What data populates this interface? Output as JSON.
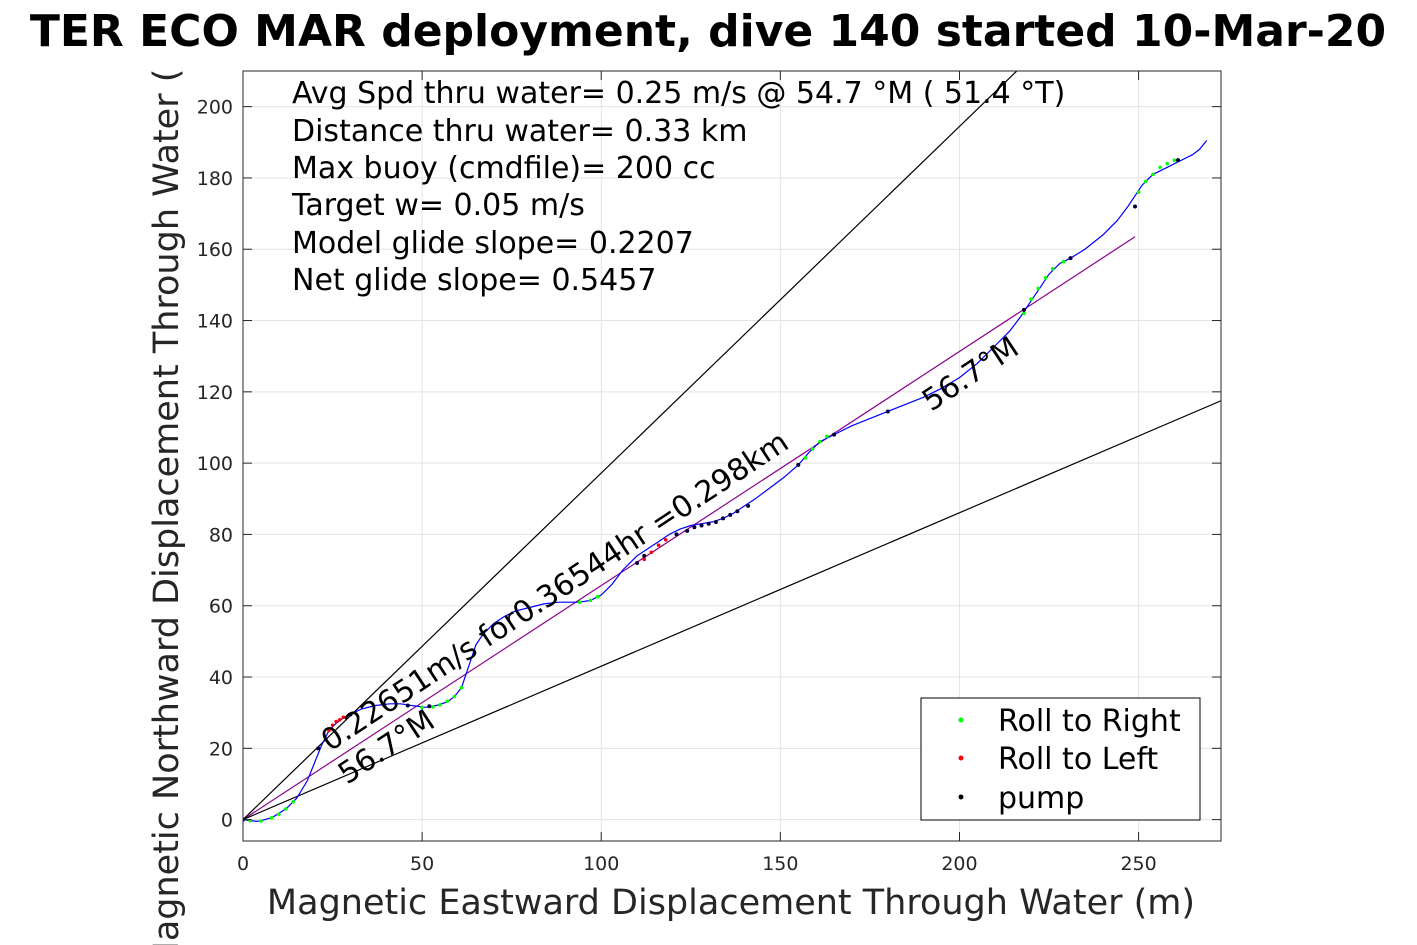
{
  "chart_data": {
    "type": "line",
    "title": "TER ECO MAR deployment, dive 140 started 10-Mar-20",
    "xlabel": "Magnetic Eastward Displacement Through Water (m)",
    "ylabel": "Magnetic Northward Displacement Through Water (",
    "xlim": [
      0,
      273
    ],
    "ylim": [
      -6,
      210
    ],
    "xticks": [
      0,
      50,
      100,
      150,
      200,
      250
    ],
    "yticks": [
      0,
      20,
      40,
      60,
      80,
      100,
      120,
      140,
      160,
      180,
      200
    ],
    "grid": true,
    "legend_position": "bottom-right",
    "info_lines": [
      "Avg Spd thru water=  0.25 m/s @  54.7 °M ( 51.4 °T)",
      "Distance thru water=  0.33 km",
      "Max buoy (cmdfile)= 200 cc",
      "Target w= 0.05 m/s",
      "Model glide slope= 0.2207",
      "Net glide slope= 0.5457"
    ],
    "annotations": {
      "track_label": "0.22651m/s for0.36544hr =0.298km",
      "heading_upper": "56.7°M",
      "heading_lower": "56.7°M"
    },
    "legend": [
      {
        "label": "Roll to Right",
        "color": "#00ff00"
      },
      {
        "label": "Roll to Left",
        "color": "#ff0000"
      },
      {
        "label": "pump",
        "color": "#000000"
      }
    ],
    "track": {
      "name": "track",
      "color": "#0000ff",
      "x": [
        0,
        4,
        8,
        12,
        15,
        18,
        20,
        22,
        24,
        26,
        28,
        30,
        33,
        37,
        41,
        44,
        47,
        51,
        54,
        57,
        59,
        61,
        62,
        63,
        64,
        65,
        67,
        70,
        73,
        76,
        80,
        84,
        88,
        91,
        94,
        97,
        100,
        103,
        106,
        108,
        110,
        113,
        116,
        119,
        122,
        125,
        128,
        131,
        134,
        137,
        140,
        143,
        147,
        151,
        155,
        158,
        161,
        165,
        170,
        175,
        180,
        185,
        190,
        195,
        200,
        205,
        210,
        214,
        217,
        219,
        221,
        223,
        225,
        228,
        231,
        235,
        240,
        244,
        247,
        249,
        251,
        254,
        258,
        262,
        265,
        267,
        269
      ],
      "y": [
        0,
        -0.5,
        0.5,
        3,
        6,
        11,
        16,
        21,
        25,
        27,
        28.5,
        29.5,
        31,
        32,
        32.5,
        32.5,
        32,
        31.5,
        32,
        33,
        34.5,
        37,
        40,
        43,
        46,
        49,
        52,
        55,
        57,
        58.5,
        59.5,
        60.5,
        61,
        61,
        61,
        61.5,
        63,
        66,
        70,
        72,
        74,
        76,
        78,
        80,
        81.5,
        82.5,
        83,
        83.5,
        84.5,
        86,
        88,
        90,
        93,
        96,
        99.5,
        103,
        106,
        108,
        110.5,
        112.5,
        114.5,
        116.5,
        118.5,
        121,
        124,
        128,
        133,
        137,
        141,
        144,
        147,
        150,
        153,
        156,
        157.5,
        160,
        164,
        168,
        172,
        175,
        178,
        181,
        183,
        185,
        186.5,
        188,
        190.5
      ]
    },
    "roll_right_points": [
      [
        2,
        -0.3
      ],
      [
        5,
        -0.4
      ],
      [
        8,
        0.5
      ],
      [
        10,
        1.5
      ],
      [
        12,
        3
      ],
      [
        14,
        5
      ],
      [
        50,
        31.5
      ],
      [
        53,
        31.6
      ],
      [
        55,
        32.2
      ],
      [
        57,
        33.2
      ],
      [
        59,
        34.5
      ],
      [
        61,
        37
      ],
      [
        94,
        61
      ],
      [
        97,
        61.5
      ],
      [
        99,
        62.5
      ],
      [
        157,
        101.5
      ],
      [
        159,
        104
      ],
      [
        161,
        106
      ],
      [
        163,
        107.5
      ],
      [
        218,
        142
      ],
      [
        220,
        146
      ],
      [
        222,
        149
      ],
      [
        224,
        152
      ],
      [
        226,
        154.5
      ],
      [
        229,
        156.5
      ],
      [
        250,
        176
      ],
      [
        252,
        179
      ],
      [
        254,
        181
      ],
      [
        256,
        183
      ],
      [
        258,
        184
      ],
      [
        260,
        185
      ]
    ],
    "roll_left_points": [
      [
        24,
        25
      ],
      [
        25,
        26.5
      ],
      [
        26,
        27.5
      ],
      [
        27,
        28
      ],
      [
        28,
        28.7
      ],
      [
        112,
        73
      ],
      [
        114,
        75
      ],
      [
        116,
        77
      ],
      [
        118,
        78.5
      ]
    ],
    "pump_points": [
      [
        0,
        0
      ],
      [
        21,
        20
      ],
      [
        30,
        29.5
      ],
      [
        46,
        32
      ],
      [
        52,
        31.8
      ],
      [
        67,
        52
      ],
      [
        110,
        72
      ],
      [
        112,
        74
      ],
      [
        121,
        80
      ],
      [
        124,
        81
      ],
      [
        126,
        82
      ],
      [
        128,
        82.5
      ],
      [
        130,
        83
      ],
      [
        132,
        83.5
      ],
      [
        134,
        84.5
      ],
      [
        136,
        85.5
      ],
      [
        138,
        86.5
      ],
      [
        141,
        88
      ],
      [
        155,
        99.5
      ],
      [
        165,
        108
      ],
      [
        180,
        114.5
      ],
      [
        218,
        143
      ],
      [
        231,
        157.5
      ],
      [
        249,
        172
      ],
      [
        261,
        185
      ]
    ],
    "lines": [
      {
        "name": "model-glide-line",
        "color": "#8b008b",
        "x": [
          0,
          249
        ],
        "y": [
          0,
          163.5
        ]
      },
      {
        "name": "reference-line-upper",
        "color": "#000000",
        "x": [
          0,
          216
        ],
        "y": [
          0,
          210
        ]
      },
      {
        "name": "reference-line-lower",
        "color": "#000000",
        "x": [
          0,
          273
        ],
        "y": [
          0,
          117.5
        ]
      }
    ]
  }
}
